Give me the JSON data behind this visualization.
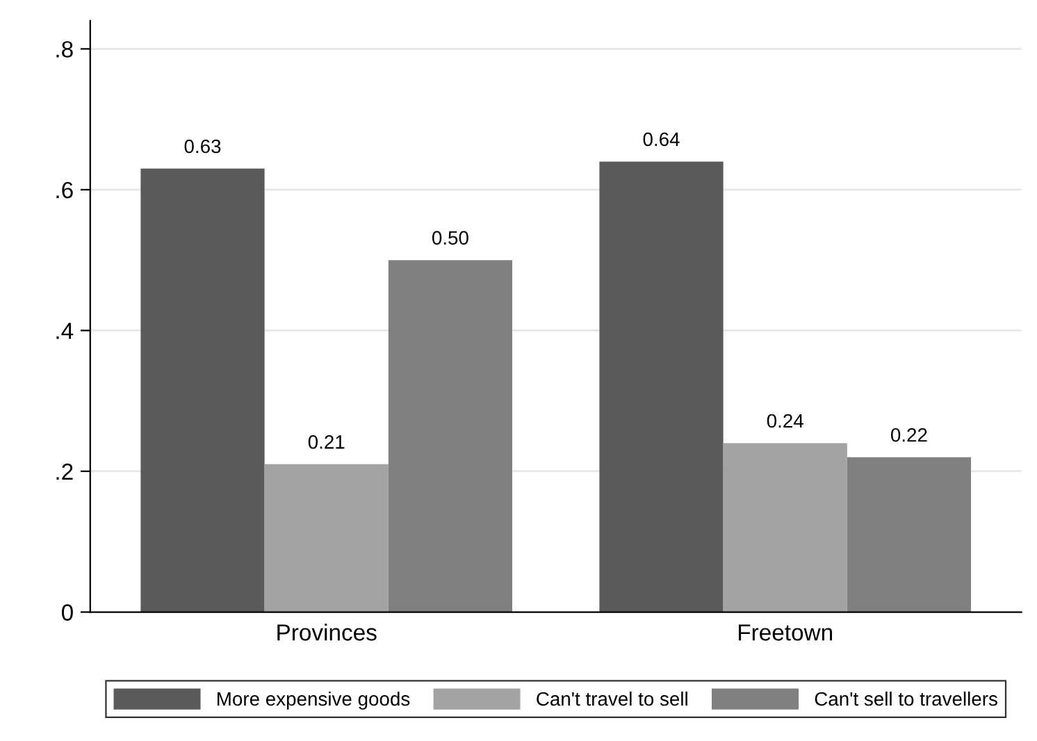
{
  "chart_data": {
    "type": "bar",
    "categories": [
      "Provinces",
      "Freetown"
    ],
    "series": [
      {
        "name": "More expensive goods",
        "color": "#5a5a5a",
        "values": [
          0.63,
          0.64
        ],
        "value_labels": [
          "0.63",
          "0.64"
        ]
      },
      {
        "name": "Can't travel to sell",
        "color": "#a3a3a3",
        "values": [
          0.21,
          0.24
        ],
        "value_labels": [
          "0.21",
          "0.24"
        ]
      },
      {
        "name": "Can't sell to travellers",
        "color": "#808080",
        "values": [
          0.5,
          0.22
        ],
        "value_labels": [
          "0.50",
          "0.22"
        ]
      }
    ],
    "ylim": [
      0,
      0.84
    ],
    "yticks": [
      {
        "value": 0,
        "label": "0"
      },
      {
        "value": 0.2,
        "label": ".2"
      },
      {
        "value": 0.4,
        "label": ".4"
      },
      {
        "value": 0.6,
        "label": ".6"
      },
      {
        "value": 0.8,
        "label": ".8"
      }
    ],
    "grid": "y",
    "legend": "bottom"
  }
}
